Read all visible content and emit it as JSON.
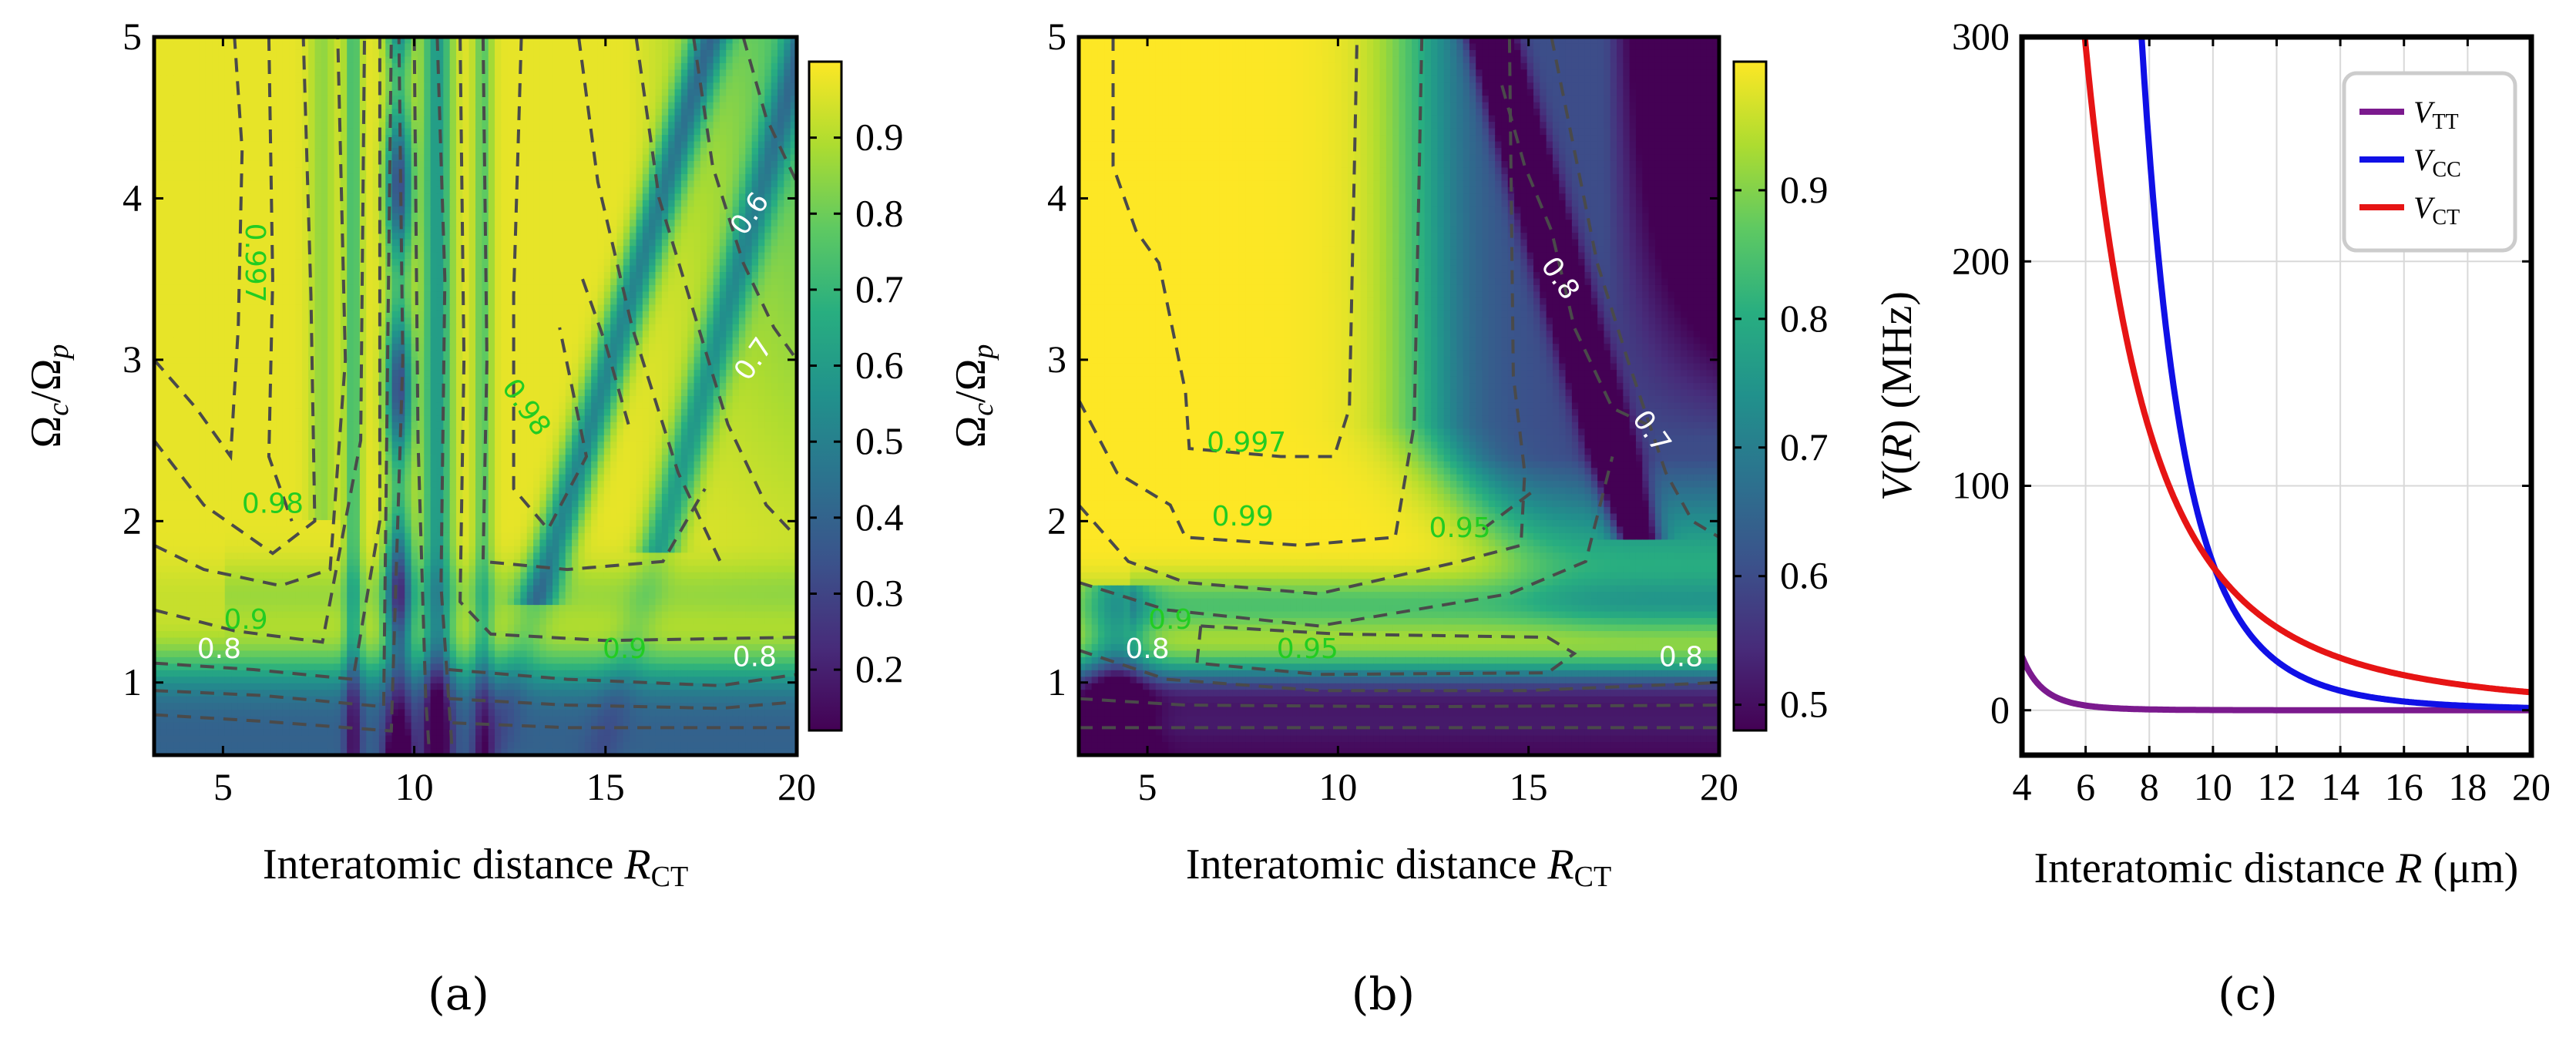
{
  "colors": {
    "viridis": [
      "#440154",
      "#472c7a",
      "#3b528b",
      "#2c728e",
      "#21918c",
      "#28ae80",
      "#5ec962",
      "#addc30",
      "#fde725"
    ],
    "contour_label_green": "#22cc22",
    "contour_label_white": "#ffffff",
    "contour_line": "#4a4a4a"
  },
  "panels": {
    "a": {
      "label": "(a)"
    },
    "b": {
      "label": "(b)"
    },
    "c": {
      "label": "(c)"
    }
  },
  "chart_data": [
    {
      "type": "heatmap",
      "panel": "a",
      "xlabel": "Interatomic distance R_CT",
      "xlabel_main": "Interatomic distance ",
      "xlabel_var": "R",
      "xlabel_sub": "CT",
      "ylabel": "Ωc/Ωp",
      "xlim": [
        3.2,
        20
      ],
      "ylim": [
        0.55,
        5
      ],
      "xticks": [
        5,
        10,
        15,
        20
      ],
      "yticks": [
        1,
        2,
        3,
        4,
        5
      ],
      "colorbar": {
        "range": [
          0.12,
          1.0
        ],
        "ticks": [
          0.2,
          0.3,
          0.4,
          0.5,
          0.6,
          0.7,
          0.8,
          0.9
        ]
      },
      "contour_labels": [
        {
          "text": "0.997",
          "x": 5.8,
          "y": 3.6,
          "color": "green",
          "rotate": 90
        },
        {
          "text": "0.98",
          "x": 6.3,
          "y": 2.1,
          "color": "green",
          "rotate": 0
        },
        {
          "text": "0.98",
          "x": 12.9,
          "y": 2.7,
          "color": "green",
          "rotate": 55
        },
        {
          "text": "0.9",
          "x": 5.6,
          "y": 1.38,
          "color": "green",
          "rotate": 0
        },
        {
          "text": "0.9",
          "x": 15.5,
          "y": 1.2,
          "color": "green",
          "rotate": 0
        },
        {
          "text": "0.8",
          "x": 4.9,
          "y": 1.2,
          "color": "white",
          "rotate": 0
        },
        {
          "text": "0.8",
          "x": 18.9,
          "y": 1.15,
          "color": "white",
          "rotate": 0
        },
        {
          "text": "0.6",
          "x": 18.8,
          "y": 3.9,
          "color": "white",
          "rotate": -55
        },
        {
          "text": "0.7",
          "x": 18.9,
          "y": 3.0,
          "color": "white",
          "rotate": -55
        }
      ]
    },
    {
      "type": "heatmap",
      "panel": "b",
      "xlabel": "Interatomic distance R_CT",
      "xlabel_main": "Interatomic distance ",
      "xlabel_var": "R",
      "xlabel_sub": "CT",
      "ylabel": "Ωc/Ωp",
      "xlim": [
        3.2,
        20
      ],
      "ylim": [
        0.55,
        5
      ],
      "xticks": [
        5,
        10,
        15,
        20
      ],
      "yticks": [
        1,
        2,
        3,
        4,
        5
      ],
      "colorbar": {
        "range": [
          0.48,
          1.0
        ],
        "ticks": [
          0.5,
          0.6,
          0.7,
          0.8,
          0.9
        ]
      },
      "contour_labels": [
        {
          "text": "0.997",
          "x": 7.6,
          "y": 2.48,
          "color": "green",
          "rotate": 0
        },
        {
          "text": "0.99",
          "x": 7.5,
          "y": 2.02,
          "color": "green",
          "rotate": 0
        },
        {
          "text": "0.95",
          "x": 13.2,
          "y": 1.95,
          "color": "green",
          "rotate": 0
        },
        {
          "text": "0.95",
          "x": 9.2,
          "y": 1.2,
          "color": "green",
          "rotate": 0
        },
        {
          "text": "0.9",
          "x": 5.6,
          "y": 1.38,
          "color": "green",
          "rotate": 0
        },
        {
          "text": "0.8",
          "x": 5.0,
          "y": 1.2,
          "color": "white",
          "rotate": 0
        },
        {
          "text": "0.8",
          "x": 19.0,
          "y": 1.15,
          "color": "white",
          "rotate": 0
        },
        {
          "text": "0.8",
          "x": 15.8,
          "y": 3.5,
          "color": "white",
          "rotate": 55
        },
        {
          "text": "0.7",
          "x": 18.2,
          "y": 2.55,
          "color": "white",
          "rotate": 55
        }
      ]
    },
    {
      "type": "line",
      "panel": "c",
      "xlabel": "Interatomic distance R (μm)",
      "xlabel_main": "Interatomic distance ",
      "xlabel_var": "R",
      "xlabel_unit": " (μm)",
      "ylabel": "V(R) (MHz)",
      "xlim": [
        4,
        20
      ],
      "ylim": [
        -20,
        300
      ],
      "xticks": [
        4,
        6,
        8,
        10,
        12,
        14,
        16,
        18,
        20
      ],
      "yticks": [
        0,
        100,
        200,
        300
      ],
      "grid": true,
      "legend_position": "top-right",
      "series": [
        {
          "name": "V_TT",
          "sym": "V",
          "sub": "TT",
          "color": "#7b1a8e",
          "C6": 98100,
          "power": 6
        },
        {
          "name": "V_CC",
          "sym": "V",
          "sub": "CC",
          "color": "#1010e6",
          "C6": 65400000,
          "power": 6
        },
        {
          "name": "V_CT",
          "sym": "V",
          "sub": "CT",
          "color": "#e61414",
          "C3": 64000,
          "power": 3
        }
      ]
    }
  ]
}
